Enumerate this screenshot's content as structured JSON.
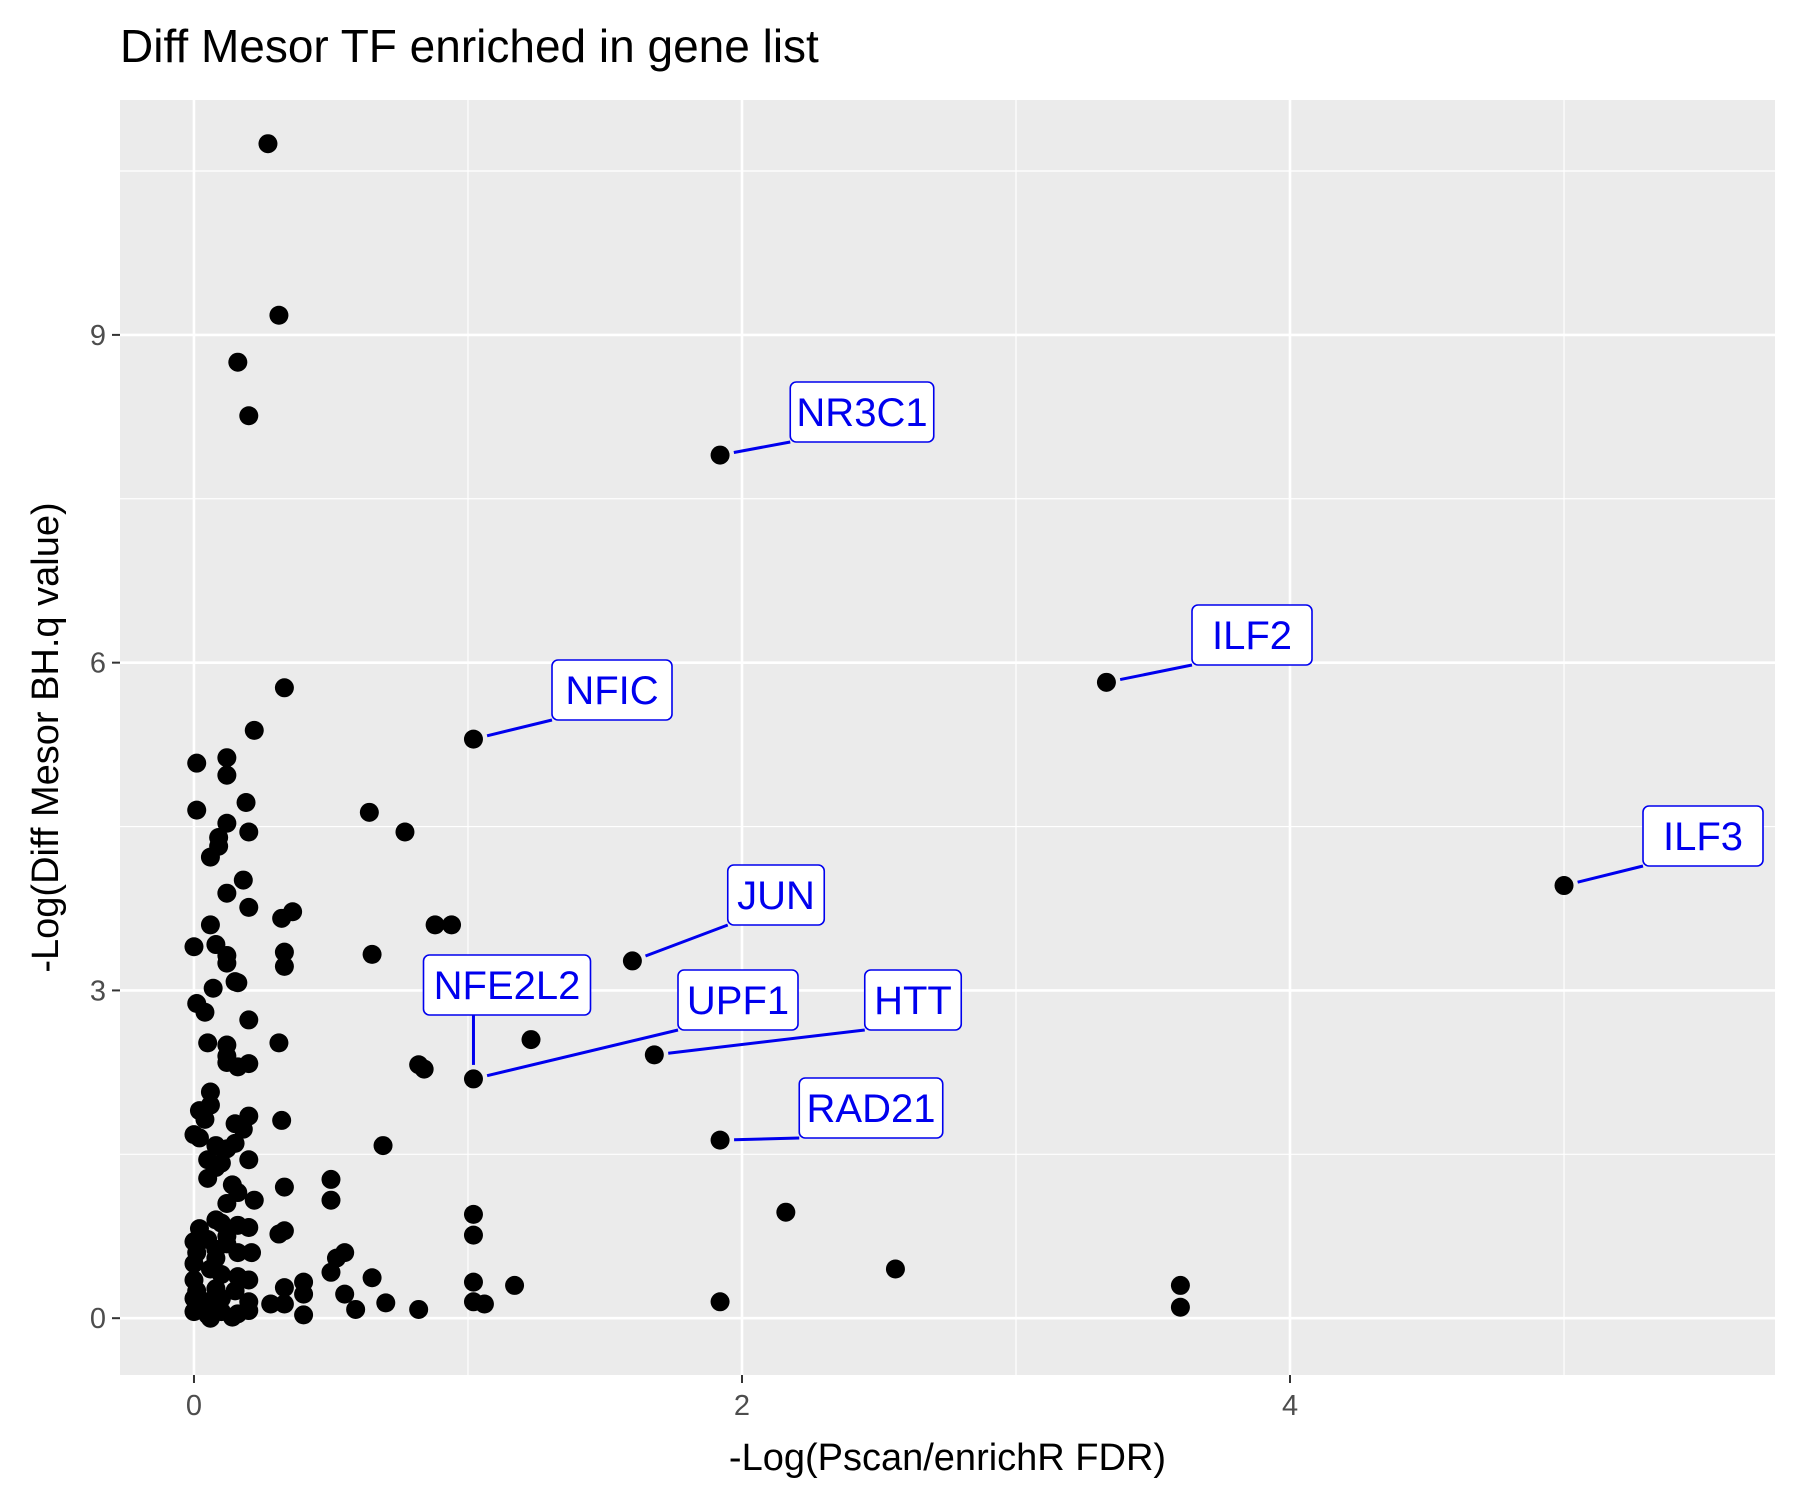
{
  "chart_data": {
    "type": "scatter",
    "title": "Diff Mesor TF enriched in gene list",
    "xlabel": "-Log(Pscan/enrichR FDR)",
    "ylabel": "-Log(Diff Mesor BH.q value)",
    "xlim": [
      -0.27,
      5.77
    ],
    "ylim": [
      -0.52,
      11.15
    ],
    "x_ticks": [
      0,
      2,
      4
    ],
    "y_ticks": [
      0,
      3,
      6,
      9
    ],
    "x_tick_labels": [
      "0",
      "2",
      "4"
    ],
    "y_tick_labels": [
      "0",
      "3",
      "6",
      "9"
    ],
    "grid": true,
    "legend": "none",
    "colors": {
      "panel": "#ebebeb",
      "grid": "#ffffff",
      "point": "#000000",
      "label": "#0000ee"
    },
    "points": [
      [
        0.27,
        10.75
      ],
      [
        0.31,
        9.18
      ],
      [
        0.16,
        8.75
      ],
      [
        0.2,
        8.26
      ],
      [
        1.92,
        7.9
      ],
      [
        3.33,
        5.82
      ],
      [
        0.33,
        5.77
      ],
      [
        1.02,
        5.3
      ],
      [
        0.22,
        5.38
      ],
      [
        0.01,
        5.08
      ],
      [
        0.12,
        5.13
      ],
      [
        0.12,
        4.97
      ],
      [
        0.01,
        4.65
      ],
      [
        0.19,
        4.72
      ],
      [
        0.12,
        4.53
      ],
      [
        0.2,
        4.45
      ],
      [
        0.09,
        4.4
      ],
      [
        0.09,
        4.32
      ],
      [
        0.06,
        4.22
      ],
      [
        0.64,
        4.63
      ],
      [
        0.77,
        4.45
      ],
      [
        5.0,
        3.96
      ],
      [
        0.18,
        4.01
      ],
      [
        0.12,
        3.89
      ],
      [
        0.2,
        3.76
      ],
      [
        0.36,
        3.72
      ],
      [
        0.32,
        3.66
      ],
      [
        0.06,
        3.6
      ],
      [
        0.88,
        3.6
      ],
      [
        0.94,
        3.6
      ],
      [
        0.0,
        3.4
      ],
      [
        0.08,
        3.42
      ],
      [
        0.12,
        3.32
      ],
      [
        0.12,
        3.25
      ],
      [
        0.33,
        3.35
      ],
      [
        0.33,
        3.22
      ],
      [
        0.65,
        3.33
      ],
      [
        1.6,
        3.27
      ],
      [
        0.15,
        3.08
      ],
      [
        0.16,
        3.07
      ],
      [
        0.07,
        3.02
      ],
      [
        0.01,
        2.88
      ],
      [
        0.04,
        2.8
      ],
      [
        0.2,
        2.73
      ],
      [
        0.05,
        2.52
      ],
      [
        0.31,
        2.52
      ],
      [
        0.12,
        2.5
      ],
      [
        1.23,
        2.55
      ],
      [
        0.12,
        2.4
      ],
      [
        1.68,
        2.41
      ],
      [
        0.12,
        2.34
      ],
      [
        0.2,
        2.33
      ],
      [
        0.16,
        2.3
      ],
      [
        0.82,
        2.32
      ],
      [
        0.84,
        2.28
      ],
      [
        1.02,
        2.19
      ],
      [
        0.06,
        2.07
      ],
      [
        0.02,
        1.9
      ],
      [
        0.06,
        1.95
      ],
      [
        0.04,
        1.82
      ],
      [
        0.2,
        1.85
      ],
      [
        0.32,
        1.81
      ],
      [
        0.15,
        1.78
      ],
      [
        0.18,
        1.73
      ],
      [
        0.0,
        1.68
      ],
      [
        0.02,
        1.65
      ],
      [
        0.08,
        1.58
      ],
      [
        0.12,
        1.55
      ],
      [
        0.15,
        1.6
      ],
      [
        1.92,
        1.63
      ],
      [
        0.69,
        1.58
      ],
      [
        0.05,
        1.45
      ],
      [
        0.1,
        1.42
      ],
      [
        0.2,
        1.45
      ],
      [
        0.08,
        1.38
      ],
      [
        0.05,
        1.28
      ],
      [
        0.14,
        1.22
      ],
      [
        0.5,
        1.27
      ],
      [
        0.33,
        1.2
      ],
      [
        0.16,
        1.15
      ],
      [
        0.22,
        1.08
      ],
      [
        0.12,
        1.05
      ],
      [
        0.5,
        1.08
      ],
      [
        1.02,
        0.95
      ],
      [
        2.16,
        0.97
      ],
      [
        0.08,
        0.9
      ],
      [
        0.1,
        0.87
      ],
      [
        0.02,
        0.82
      ],
      [
        0.16,
        0.85
      ],
      [
        0.2,
        0.83
      ],
      [
        0.31,
        0.77
      ],
      [
        0.33,
        0.8
      ],
      [
        0.0,
        0.7
      ],
      [
        0.05,
        0.72
      ],
      [
        0.12,
        0.68
      ],
      [
        1.02,
        0.76
      ],
      [
        0.01,
        0.6
      ],
      [
        0.08,
        0.63
      ],
      [
        0.16,
        0.6
      ],
      [
        0.21,
        0.6
      ],
      [
        0.55,
        0.6
      ],
      [
        0.52,
        0.55
      ],
      [
        0.5,
        0.42
      ],
      [
        2.56,
        0.45
      ],
      [
        0.0,
        0.5
      ],
      [
        0.06,
        0.45
      ],
      [
        0.1,
        0.4
      ],
      [
        0.16,
        0.38
      ],
      [
        0.65,
        0.37
      ],
      [
        0.0,
        0.35
      ],
      [
        0.2,
        0.35
      ],
      [
        0.4,
        0.33
      ],
      [
        1.02,
        0.33
      ],
      [
        1.17,
        0.3
      ],
      [
        3.6,
        0.3
      ],
      [
        0.01,
        0.25
      ],
      [
        0.08,
        0.27
      ],
      [
        0.15,
        0.25
      ],
      [
        0.33,
        0.28
      ],
      [
        0.4,
        0.22
      ],
      [
        0.55,
        0.22
      ],
      [
        0.0,
        0.18
      ],
      [
        0.05,
        0.15
      ],
      [
        0.1,
        0.18
      ],
      [
        0.2,
        0.15
      ],
      [
        0.28,
        0.13
      ],
      [
        0.33,
        0.13
      ],
      [
        0.7,
        0.14
      ],
      [
        1.02,
        0.15
      ],
      [
        1.06,
        0.13
      ],
      [
        1.92,
        0.15
      ],
      [
        0.0,
        0.06
      ],
      [
        0.05,
        0.03
      ],
      [
        0.1,
        0.06
      ],
      [
        0.16,
        0.04
      ],
      [
        0.2,
        0.07
      ],
      [
        0.4,
        0.03
      ],
      [
        0.59,
        0.08
      ],
      [
        0.82,
        0.08
      ],
      [
        3.6,
        0.1
      ],
      [
        0.06,
        0.0
      ],
      [
        0.14,
        0.01
      ],
      [
        0.08,
        0.55
      ],
      [
        0.12,
        0.75
      ]
    ],
    "labels": [
      {
        "text": "NR3C1",
        "x": 1.92,
        "y": 7.9
      },
      {
        "text": "ILF2",
        "x": 3.33,
        "y": 5.82
      },
      {
        "text": "NFIC",
        "x": 1.02,
        "y": 5.3
      },
      {
        "text": "ILF3",
        "x": 5.0,
        "y": 3.96
      },
      {
        "text": "JUN",
        "x": 1.6,
        "y": 3.27
      },
      {
        "text": "NFE2L2",
        "x": 1.02,
        "y": 2.19
      },
      {
        "text": "UPF1",
        "x": 1.02,
        "y": 2.19
      },
      {
        "text": "HTT",
        "x": 1.68,
        "y": 2.41
      },
      {
        "text": "RAD21",
        "x": 1.92,
        "y": 1.63
      }
    ]
  }
}
